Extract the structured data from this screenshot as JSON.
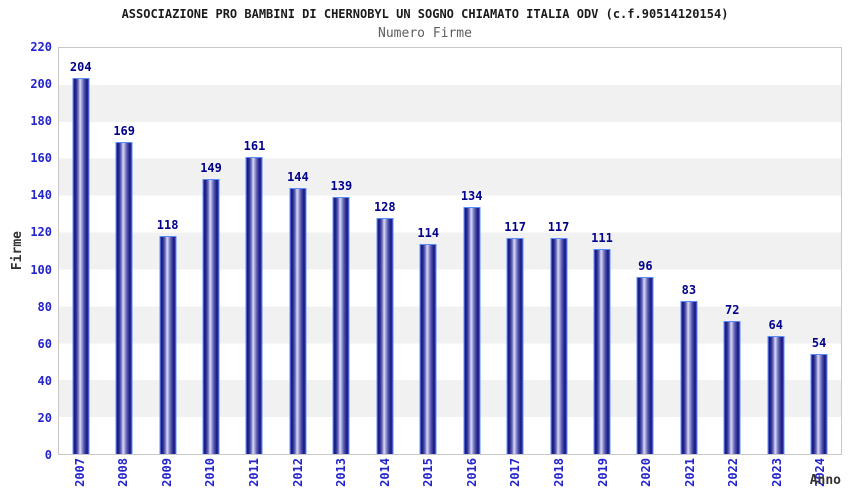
{
  "chart_data": {
    "type": "bar",
    "title": "ASSOCIAZIONE PRO BAMBINI DI CHERNOBYL UN SOGNO CHIAMATO ITALIA ODV (c.f.90514120154)",
    "subtitle": "Numero Firme",
    "xlabel": "Anno",
    "ylabel": "Firme",
    "categories": [
      "2007",
      "2008",
      "2009",
      "2010",
      "2011",
      "2012",
      "2013",
      "2014",
      "2015",
      "2016",
      "2017",
      "2018",
      "2019",
      "2020",
      "2021",
      "2022",
      "2023",
      "2024"
    ],
    "values": [
      204,
      169,
      118,
      149,
      161,
      144,
      139,
      128,
      114,
      134,
      117,
      117,
      111,
      96,
      83,
      72,
      64,
      54
    ],
    "ylim": [
      0,
      220
    ],
    "ytick_step": 20,
    "grid": "alternating-horizontal-bands",
    "legend_position": "none",
    "colors": {
      "bar_dark": "#15157d",
      "bar_light": "#d9dcf2",
      "bar_border": "#5a8cf8",
      "value_label": "#00008b",
      "axis_tick_label": "#2424cc",
      "axis_title": "#333333",
      "band_gray": "#f1f1f1",
      "band_white": "#ffffff",
      "plot_border": "#c8c8c8",
      "title_color": "#1a1a1a",
      "subtitle_color": "#5f5f5f"
    }
  }
}
